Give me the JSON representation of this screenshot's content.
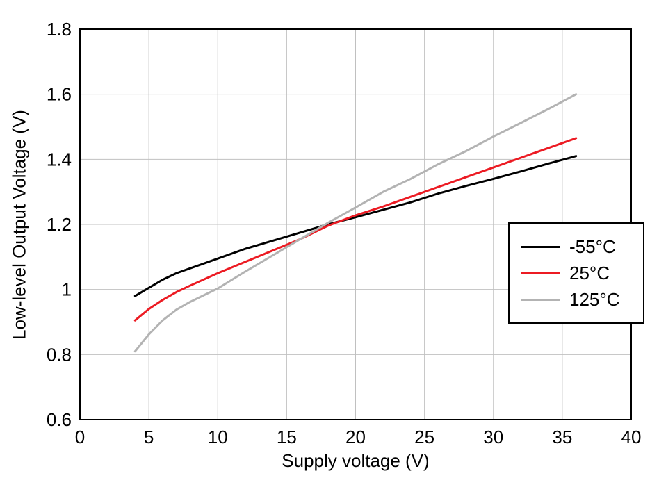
{
  "chart_data": {
    "type": "line",
    "title": "",
    "xlabel": "Supply voltage (V)",
    "ylabel": "Low-level Output Voltage (V)",
    "xlim": [
      0,
      40
    ],
    "ylim": [
      0.6,
      1.8
    ],
    "xticks": [
      0,
      5,
      10,
      15,
      20,
      25,
      30,
      35,
      40
    ],
    "xtick_labels": [
      "0",
      "5",
      "10",
      "15",
      "20",
      "25",
      "30",
      "35",
      "40"
    ],
    "yticks": [
      0.6,
      0.8,
      1.0,
      1.2,
      1.4,
      1.6,
      1.8
    ],
    "ytick_labels": [
      "0.6",
      "0.8",
      "1",
      "1.2",
      "1.4",
      "1.6",
      "1.8"
    ],
    "grid": true,
    "grid_color": "#c0c0c0",
    "axis_color": "#000000",
    "legend_position": "right-middle",
    "x": [
      4,
      5,
      6,
      7,
      8,
      10,
      12,
      14,
      16,
      18,
      20,
      22,
      24,
      26,
      28,
      30,
      32,
      34,
      36
    ],
    "series": [
      {
        "name": "-55°C",
        "color": "#000000",
        "values": [
          0.98,
          1.005,
          1.03,
          1.05,
          1.065,
          1.095,
          1.125,
          1.15,
          1.175,
          1.2,
          1.222,
          1.245,
          1.268,
          1.295,
          1.318,
          1.34,
          1.363,
          1.387,
          1.41
        ]
      },
      {
        "name": "25°C",
        "color": "#ec1b23",
        "values": [
          0.905,
          0.94,
          0.968,
          0.992,
          1.012,
          1.05,
          1.085,
          1.12,
          1.155,
          1.196,
          1.228,
          1.255,
          1.285,
          1.315,
          1.345,
          1.375,
          1.405,
          1.435,
          1.465
        ]
      },
      {
        "name": "125°C",
        "color": "#b3b3b3",
        "values": [
          0.81,
          0.862,
          0.905,
          0.938,
          0.962,
          1.003,
          1.055,
          1.105,
          1.155,
          1.205,
          1.252,
          1.3,
          1.34,
          1.385,
          1.425,
          1.47,
          1.512,
          1.555,
          1.6
        ]
      }
    ]
  }
}
